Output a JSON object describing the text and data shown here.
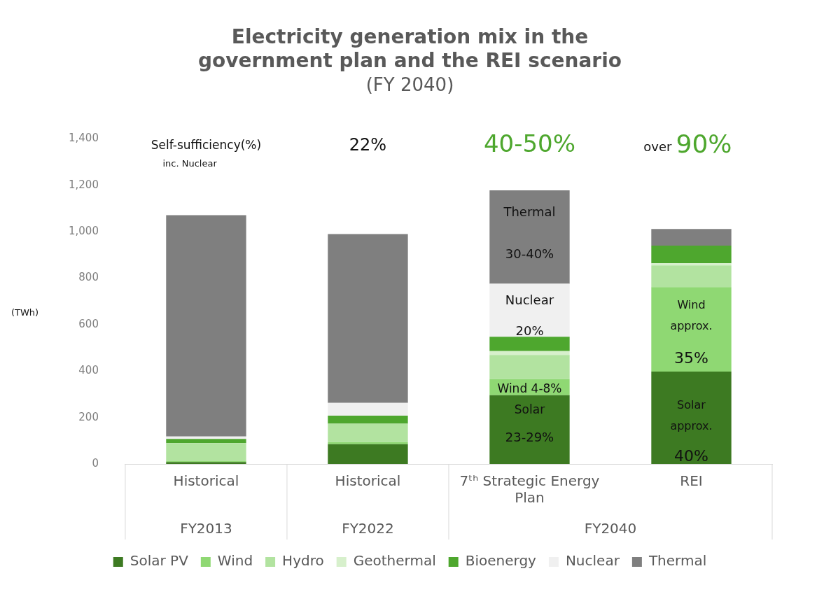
{
  "chart_data": {
    "type": "bar",
    "title": "Electricity generation mix in the government plan and the REI scenario",
    "subtitle": "(FY 2040)",
    "ylabel": "(TWh)",
    "categories": [
      "Historical",
      "Historical",
      "7ᵗʰ Strategic Energy Plan",
      "REI"
    ],
    "stacked": true,
    "ylim": [
      0,
      1400
    ],
    "yticks": [
      {
        "value": 0,
        "label": "0"
      },
      {
        "value": 200,
        "label": "200"
      },
      {
        "value": 400,
        "label": "400"
      },
      {
        "value": 600,
        "label": "600"
      },
      {
        "value": 800,
        "label": "800"
      },
      {
        "value": 1000,
        "label": "1,000"
      },
      {
        "value": 1200,
        "label": "1,200"
      },
      {
        "value": 1400,
        "label": "1,400"
      }
    ],
    "grid": false,
    "legend": "bottom",
    "series": [
      {
        "name": "Solar PV",
        "color": "#3d7a22",
        "values": [
          8,
          85,
          296,
          398
        ]
      },
      {
        "name": "Wind",
        "color": "#8fd873",
        "values": [
          4,
          9,
          69,
          364
        ]
      },
      {
        "name": "Hydro",
        "color": "#b2e3a0",
        "values": [
          78,
          79,
          104,
          93
        ]
      },
      {
        "name": "Geothermal",
        "color": "#d7f0cc",
        "values": [
          null,
          null,
          17,
          9
        ]
      },
      {
        "name": "Bioenergy",
        "color": "#4ea72e",
        "values": [
          18,
          35,
          62,
          76
        ]
      },
      {
        "name": "Nuclear",
        "color": "#f0f0f0",
        "values": [
          10,
          55,
          228,
          0
        ]
      },
      {
        "name": "Thermal",
        "color": "#7f7f7f",
        "values": [
          953,
          727,
          402,
          72
        ]
      }
    ],
    "annotations": [
      "Self-sufficiency(%)",
      "inc. Nuclear",
      "22%",
      "40-50%",
      "over",
      "90%",
      "FY2013",
      "FY2022",
      "FY2040",
      "Thermal",
      "30-40%",
      "Nuclear",
      "20%",
      "Wind 4-8%",
      "Solar",
      "23-29%",
      "Wind",
      "approx.",
      "35%",
      "Solar",
      "approx.",
      "40%"
    ]
  }
}
